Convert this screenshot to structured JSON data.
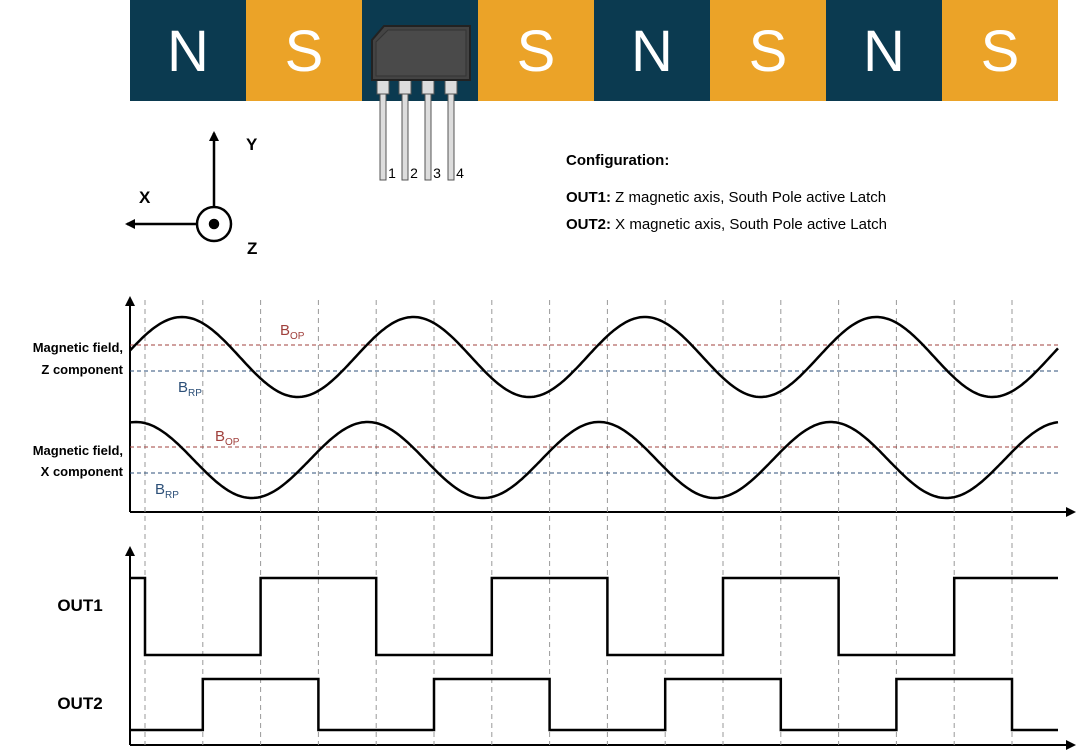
{
  "magnet": {
    "poles": [
      "N",
      "S",
      "S",
      "N",
      "S",
      "N",
      "S"
    ]
  },
  "sensor": {
    "pins": [
      "1",
      "2",
      "3",
      "4"
    ]
  },
  "axes": {
    "y": "Y",
    "x": "X",
    "z": "Z"
  },
  "configuration": {
    "title": "Configuration:",
    "lines": [
      {
        "label": "OUT1:",
        "text": " Z magnetic axis, South Pole active Latch"
      },
      {
        "label": "OUT2:",
        "text": " X magnetic axis, South Pole active Latch"
      }
    ]
  },
  "waveforms": {
    "z": {
      "label": [
        "Magnetic field,",
        "Z component"
      ],
      "bop": {
        "base": "B",
        "sub": "OP"
      },
      "brp": {
        "base": "B",
        "sub": "RP"
      }
    },
    "x": {
      "label": [
        "Magnetic field,",
        "X component"
      ],
      "bop": {
        "base": "B",
        "sub": "OP"
      },
      "brp": {
        "base": "B",
        "sub": "RP"
      }
    }
  },
  "outputs": [
    "OUT1",
    "OUT2"
  ]
}
